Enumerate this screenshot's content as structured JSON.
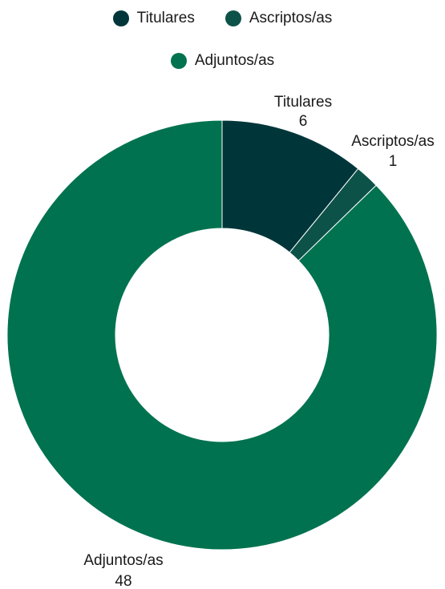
{
  "chart_data": {
    "type": "pie",
    "variant": "donut",
    "title": "",
    "categories": [
      "Titulares",
      "Ascriptos/as",
      "Adjuntos/as"
    ],
    "values": [
      6,
      1,
      48
    ],
    "colors": [
      "#00363a",
      "#0d5249",
      "#00724f"
    ],
    "legend": {
      "placement": "top",
      "entries": [
        "Titulares",
        "Ascriptos/as",
        "Adjuntos/as"
      ]
    },
    "data_labels": [
      {
        "name": "Titulares",
        "value": "6"
      },
      {
        "name": "Ascriptos/as",
        "value": "1"
      },
      {
        "name": "Adjuntos/as",
        "value": "48"
      }
    ]
  }
}
